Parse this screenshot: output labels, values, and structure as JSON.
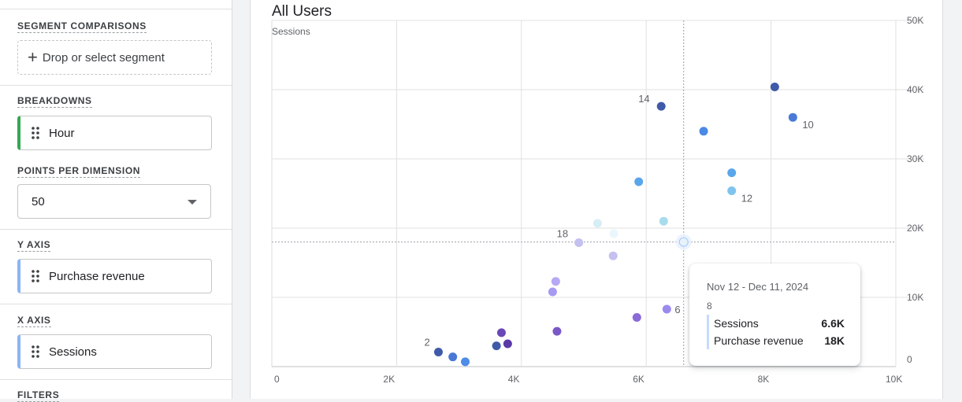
{
  "sidebar": {
    "segment_comparisons": {
      "label": "SEGMENT COMPARISONS",
      "drop_text": "Drop or select segment"
    },
    "breakdowns": {
      "label": "BREAKDOWNS",
      "chip": "Hour"
    },
    "points_per_dimension": {
      "label": "POINTS PER DIMENSION",
      "value": "50"
    },
    "y_axis": {
      "label": "Y AXIS",
      "chip": "Purchase revenue"
    },
    "x_axis": {
      "label": "X AXIS",
      "chip": "Sessions"
    },
    "filters": {
      "label": "FILTERS"
    }
  },
  "chart": {
    "title": "All Users",
    "y_title": "Sessions"
  },
  "chart_data": {
    "type": "scatter",
    "title": "All Users",
    "xlabel": "",
    "ylabel": "Sessions",
    "xlim": [
      0,
      10000
    ],
    "ylim": [
      0,
      50000
    ],
    "x_ticks": [
      "0",
      "2K",
      "4K",
      "6K",
      "8K",
      "10K"
    ],
    "y_ticks": [
      "0",
      "10K",
      "20K",
      "30K",
      "40K",
      "50K"
    ],
    "grid": true,
    "points": [
      {
        "x": 2670,
        "y": 2100,
        "label": "2",
        "color": "#3f5aa8"
      },
      {
        "x": 2900,
        "y": 1400,
        "label": "",
        "color": "#4a78d6"
      },
      {
        "x": 3100,
        "y": 700,
        "label": "",
        "color": "#4f8be8"
      },
      {
        "x": 3600,
        "y": 3000,
        "label": "",
        "color": "#3f5aa8"
      },
      {
        "x": 3680,
        "y": 4900,
        "label": "",
        "color": "#6a48b8"
      },
      {
        "x": 3780,
        "y": 3300,
        "label": "",
        "color": "#5a3aa8"
      },
      {
        "x": 4500,
        "y": 10800,
        "label": "",
        "color": "#a69af2"
      },
      {
        "x": 4550,
        "y": 12300,
        "label": "",
        "color": "#b6a8f4"
      },
      {
        "x": 4570,
        "y": 5100,
        "label": "",
        "color": "#7a58c8"
      },
      {
        "x": 4920,
        "y": 17900,
        "label": "18",
        "color": "#c4c0f0"
      },
      {
        "x": 5220,
        "y": 20700,
        "label": "",
        "color": "#d6eef6"
      },
      {
        "x": 5470,
        "y": 16000,
        "label": "",
        "color": "#c4c0f0"
      },
      {
        "x": 5480,
        "y": 19200,
        "label": "",
        "color": "#eaf6fb"
      },
      {
        "x": 5850,
        "y": 7100,
        "label": "",
        "color": "#8a6ad8"
      },
      {
        "x": 5880,
        "y": 26700,
        "label": "",
        "color": "#5aa6ea"
      },
      {
        "x": 6240,
        "y": 37600,
        "label": "14",
        "color": "#3f5aa8"
      },
      {
        "x": 6280,
        "y": 21000,
        "label": "",
        "color": "#a8dcec"
      },
      {
        "x": 6330,
        "y": 8300,
        "label": "6",
        "color": "#9a8af0"
      },
      {
        "x": 6600,
        "y": 18000,
        "label": "",
        "color": "#e6f3fa"
      },
      {
        "x": 6920,
        "y": 34000,
        "label": "",
        "color": "#4a8ae6"
      },
      {
        "x": 7370,
        "y": 28000,
        "label": "",
        "color": "#5aa6ea"
      },
      {
        "x": 7370,
        "y": 25400,
        "label": "12",
        "color": "#7ec4ee"
      },
      {
        "x": 8060,
        "y": 40400,
        "label": "",
        "color": "#3f5aa8"
      },
      {
        "x": 8350,
        "y": 36000,
        "label": "10",
        "color": "#4a7ad8"
      }
    ],
    "highlight": {
      "x": 6600,
      "y": 18000
    },
    "tooltip": {
      "date_range": "Nov 12 - Dec 11, 2024",
      "point_label": "8",
      "rows": [
        {
          "name": "Sessions",
          "value": "6.6K"
        },
        {
          "name": "Purchase revenue",
          "value": "18K"
        }
      ]
    }
  }
}
